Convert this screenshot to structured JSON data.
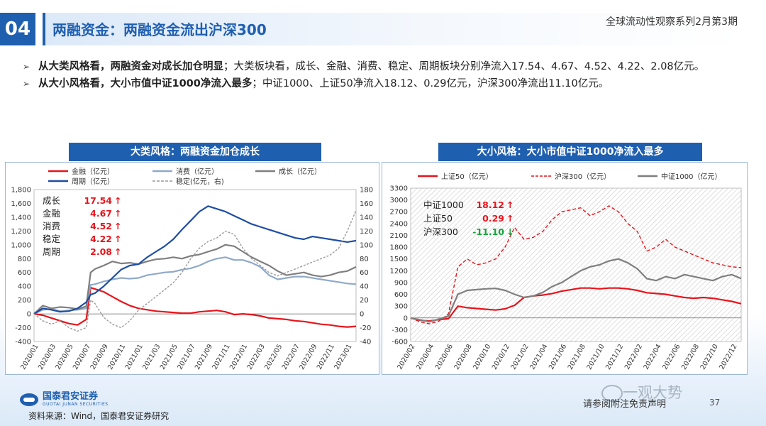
{
  "header": {
    "badge": "04",
    "title": "两融资金：两融资金流出沪深300",
    "series": "全球流动性观察系列2月第3期"
  },
  "bullets": [
    {
      "marker": "➢",
      "bold": "从大类风格看，两融资金对成长加仓明显",
      "text": "；大类板块看，成长、金融、消费、稳定、周期板块分别净流入17.54、4.67、4.52、4.22、2.08亿元。"
    },
    {
      "marker": "➢",
      "bold": "从大小风格看，大小市值中证1000净流入最多",
      "text": "；中证1000、上证50净流入18.12、0.29亿元，沪深300净流出11.10亿元。"
    }
  ],
  "colors": {
    "brand": "#1f5fb0",
    "red": "#e8141b",
    "lightblue": "#8fa9c9",
    "gray": "#7f7f7f",
    "darkblue": "#1f4ea3",
    "dashgray": "#9a9a9a",
    "green": "#12a538"
  },
  "chart_data": [
    {
      "type": "line",
      "panel_title": "大类风格：两融资金加仓成长",
      "legend": [
        {
          "name": "金融（亿元）",
          "color": "#e8141b",
          "dash": false
        },
        {
          "name": "消费（亿元）",
          "color": "#8fa9c9",
          "dash": false
        },
        {
          "name": "成长（亿元）",
          "color": "#7f7f7f",
          "dash": false
        },
        {
          "name": "周期（亿元）",
          "color": "#1f4ea3",
          "dash": false
        },
        {
          "name": "稳定(亿元，右)",
          "color": "#9a9a9a",
          "dash": true
        }
      ],
      "ylim": [
        -400,
        1800
      ],
      "yticks": [
        -400,
        -200,
        0,
        200,
        400,
        600,
        800,
        1000,
        1200,
        1400,
        1600,
        1800
      ],
      "ytick_labels": [
        "-400",
        "-200",
        "0",
        "200",
        "400",
        "600",
        "800",
        "1,000",
        "1,200",
        "1,400",
        "1,600",
        "1,800"
      ],
      "y2lim": [
        -40,
        180
      ],
      "y2ticks": [
        -40,
        -20,
        0,
        20,
        40,
        60,
        80,
        100,
        120,
        140,
        160,
        180
      ],
      "y2tick_labels": [
        "-40",
        "-20",
        "0",
        "20",
        "40",
        "60",
        "80",
        "100",
        "120",
        "140",
        "160",
        "180"
      ],
      "xlim": [
        0,
        37
      ],
      "xticks": [
        "2020/01",
        "2020/03",
        "2020/05",
        "2020/07",
        "2020/09",
        "2020/11",
        "2021/01",
        "2021/03",
        "2021/05",
        "2021/07",
        "2021/09",
        "2021/11",
        "2022/01",
        "2022/03",
        "2022/05",
        "2022/07",
        "2022/09",
        "2022/11",
        "2023/01"
      ],
      "annotations": [
        {
          "label": "成长",
          "value": "17.54",
          "arrow": "↑",
          "color": "#e8141b"
        },
        {
          "label": "金融",
          "value": "4.67",
          "arrow": "↑",
          "color": "#e8141b"
        },
        {
          "label": "消费",
          "value": "4.52",
          "arrow": "↑",
          "color": "#e8141b"
        },
        {
          "label": "稳定",
          "value": "4.22",
          "arrow": "↑",
          "color": "#e8141b"
        },
        {
          "label": "周期",
          "value": "2.08",
          "arrow": "↑",
          "color": "#e8141b"
        }
      ],
      "series": [
        {
          "name": "金融（亿元）",
          "axis": "left",
          "color": "#e8141b",
          "dash": false,
          "x": [
            0,
            1,
            2,
            3,
            4,
            5,
            6,
            6.5,
            7,
            8,
            9,
            10,
            11,
            12,
            13,
            14,
            15,
            16,
            17,
            18,
            19,
            20,
            21,
            22,
            23,
            24,
            25,
            26,
            27,
            28,
            29,
            30,
            31,
            32,
            33,
            34,
            35,
            36,
            37
          ],
          "y": [
            0,
            -20,
            -60,
            -100,
            -140,
            -160,
            -80,
            380,
            360,
            320,
            250,
            180,
            120,
            80,
            60,
            40,
            30,
            20,
            10,
            10,
            30,
            40,
            50,
            30,
            -10,
            0,
            -10,
            -30,
            -60,
            -70,
            -80,
            -100,
            -110,
            -130,
            -150,
            -160,
            -180,
            -190,
            -180
          ]
        },
        {
          "name": "消费（亿元）",
          "axis": "left",
          "color": "#8fa9c9",
          "dash": false,
          "x": [
            0,
            1,
            2,
            3,
            4,
            5,
            6,
            6.5,
            7,
            8,
            9,
            10,
            11,
            12,
            13,
            14,
            15,
            16,
            17,
            18,
            19,
            20,
            21,
            22,
            23,
            24,
            25,
            26,
            27,
            28,
            29,
            30,
            31,
            32,
            33,
            34,
            35,
            36,
            37
          ],
          "y": [
            0,
            60,
            70,
            40,
            50,
            60,
            80,
            420,
            430,
            470,
            500,
            520,
            510,
            520,
            560,
            580,
            600,
            610,
            640,
            660,
            700,
            760,
            800,
            820,
            780,
            780,
            740,
            680,
            560,
            500,
            520,
            540,
            540,
            520,
            500,
            480,
            460,
            440,
            430
          ]
        },
        {
          "name": "成长（亿元）",
          "axis": "left",
          "color": "#7f7f7f",
          "dash": false,
          "x": [
            0,
            1,
            2,
            3,
            4,
            5,
            6,
            6.5,
            7,
            8,
            9,
            10,
            11,
            12,
            13,
            14,
            15,
            16,
            17,
            18,
            19,
            20,
            21,
            22,
            23,
            24,
            25,
            26,
            27,
            28,
            29,
            30,
            31,
            32,
            33,
            34,
            35,
            36,
            37
          ],
          "y": [
            0,
            120,
            80,
            100,
            90,
            70,
            110,
            600,
            650,
            700,
            760,
            730,
            740,
            720,
            760,
            790,
            800,
            820,
            800,
            840,
            860,
            900,
            940,
            1000,
            980,
            900,
            820,
            760,
            700,
            620,
            560,
            580,
            600,
            560,
            540,
            560,
            600,
            620,
            680
          ]
        },
        {
          "name": "周期（亿元）",
          "axis": "left",
          "color": "#1f4ea3",
          "dash": false,
          "x": [
            0,
            1,
            2,
            3,
            4,
            5,
            6,
            6.5,
            7,
            8,
            9,
            10,
            11,
            12,
            13,
            14,
            15,
            16,
            17,
            18,
            19,
            20,
            21,
            22,
            23,
            24,
            25,
            26,
            27,
            28,
            29,
            30,
            31,
            32,
            33,
            34,
            35,
            36,
            37
          ],
          "y": [
            0,
            80,
            60,
            30,
            40,
            80,
            170,
            280,
            300,
            400,
            520,
            640,
            700,
            720,
            820,
            900,
            980,
            1080,
            1220,
            1350,
            1480,
            1560,
            1520,
            1480,
            1420,
            1360,
            1300,
            1260,
            1220,
            1180,
            1140,
            1100,
            1080,
            1120,
            1100,
            1080,
            1060,
            1040,
            1060
          ]
        },
        {
          "name": "稳定(亿元，右)",
          "axis": "right",
          "color": "#9a9a9a",
          "dash": true,
          "x": [
            0,
            1,
            2,
            3,
            4,
            5,
            6,
            6.5,
            7,
            8,
            9,
            10,
            11,
            12,
            13,
            14,
            15,
            16,
            17,
            18,
            19,
            20,
            21,
            22,
            23,
            24,
            25,
            26,
            27,
            28,
            29,
            30,
            31,
            32,
            33,
            34,
            35,
            36,
            37
          ],
          "y": [
            0,
            -10,
            -15,
            -10,
            -20,
            -25,
            -20,
            20,
            15,
            -5,
            -15,
            -20,
            -10,
            5,
            15,
            25,
            35,
            45,
            60,
            80,
            95,
            105,
            110,
            120,
            115,
            95,
            80,
            70,
            60,
            55,
            60,
            65,
            70,
            75,
            80,
            85,
            95,
            120,
            150
          ]
        }
      ]
    },
    {
      "type": "line",
      "panel_title": "大小风格：大小市值中证1000净流入最多",
      "legend": [
        {
          "name": "上证50（亿元）",
          "color": "#e8141b",
          "dash": false
        },
        {
          "name": "沪深300（亿元）",
          "color": "#e8141b",
          "dash": true
        },
        {
          "name": "中证1000（亿元）",
          "color": "#7f7f7f",
          "dash": false
        }
      ],
      "ylim": [
        -600,
        3300
      ],
      "yticks": [
        -600,
        -300,
        0,
        300,
        600,
        900,
        1200,
        1500,
        1800,
        2100,
        2400,
        2700,
        3000,
        3300
      ],
      "ytick_labels": [
        "-600",
        "-300",
        "0",
        "300",
        "600",
        "900",
        "1200",
        "1500",
        "1800",
        "2100",
        "2400",
        "2700",
        "3000",
        "3300"
      ],
      "xlim": [
        0,
        35
      ],
      "xticks": [
        "2020/02",
        "2020/04",
        "2020/06",
        "2020/08",
        "2020/10",
        "2020/12",
        "2021/02",
        "2021/04",
        "2021/06",
        "2021/08",
        "2021/10",
        "2021/12",
        "2022/02",
        "2022/04",
        "2022/06",
        "2022/08",
        "2022/10",
        "2022/12"
      ],
      "annotations": [
        {
          "label": "中证1000",
          "value": "18.12",
          "arrow": "↑",
          "color": "#e8141b"
        },
        {
          "label": "上证50",
          "value": "0.29",
          "arrow": "↑",
          "color": "#e8141b"
        },
        {
          "label": "沪深300",
          "value": "-11.10",
          "arrow": "↓",
          "color": "#12a538"
        }
      ],
      "series": [
        {
          "name": "上证50（亿元）",
          "color": "#e8141b",
          "dash": false,
          "x": [
            0,
            1,
            2,
            3,
            4,
            5,
            6,
            7,
            8,
            9,
            10,
            11,
            12,
            13,
            14,
            15,
            16,
            17,
            18,
            19,
            20,
            21,
            22,
            23,
            24,
            25,
            26,
            27,
            28,
            29,
            30,
            31,
            32,
            33,
            34,
            35
          ],
          "y": [
            0,
            -60,
            -80,
            -40,
            -20,
            300,
            260,
            240,
            220,
            200,
            230,
            320,
            520,
            560,
            580,
            620,
            680,
            720,
            760,
            760,
            740,
            760,
            760,
            740,
            700,
            640,
            620,
            600,
            560,
            520,
            500,
            520,
            500,
            460,
            420,
            360
          ]
        },
        {
          "name": "沪深300（亿元）",
          "color": "#e8141b",
          "dash": true,
          "x": [
            0,
            1,
            2,
            3,
            4,
            5,
            6,
            7,
            8,
            9,
            10,
            11,
            12,
            13,
            14,
            15,
            16,
            17,
            18,
            19,
            20,
            21,
            22,
            23,
            24,
            25,
            26,
            27,
            28,
            29,
            30,
            31,
            32,
            33,
            34,
            35
          ],
          "y": [
            0,
            -100,
            -150,
            -80,
            100,
            1300,
            1500,
            1350,
            1400,
            1500,
            1800,
            2300,
            2000,
            2050,
            2200,
            2500,
            2700,
            2750,
            2800,
            2600,
            2700,
            2850,
            2700,
            2400,
            2200,
            1700,
            1800,
            2000,
            1800,
            1700,
            1600,
            1500,
            1400,
            1350,
            1300,
            1280
          ]
        },
        {
          "name": "中证1000（亿元）",
          "color": "#7f7f7f",
          "dash": false,
          "x": [
            0,
            1,
            2,
            3,
            4,
            5,
            6,
            7,
            8,
            9,
            10,
            11,
            12,
            13,
            14,
            15,
            16,
            17,
            18,
            19,
            20,
            21,
            22,
            23,
            24,
            25,
            26,
            27,
            28,
            29,
            30,
            31,
            32,
            33,
            34,
            35
          ],
          "y": [
            0,
            -50,
            -100,
            -30,
            50,
            600,
            700,
            720,
            740,
            750,
            700,
            600,
            520,
            560,
            650,
            800,
            900,
            1050,
            1200,
            1300,
            1350,
            1450,
            1500,
            1400,
            1250,
            1000,
            950,
            1050,
            1000,
            1100,
            1050,
            1000,
            950,
            1050,
            1100,
            1000
          ]
        }
      ]
    }
  ],
  "footer": {
    "logo_cn": "国泰君安证券",
    "logo_en": "GUOTAI JUNAN SECURITIES",
    "source": "资料来源：Wind，国泰君安证券研究",
    "disclaimer": "请参阅附注免责声明",
    "page": "37",
    "watermark": "一观大势"
  }
}
